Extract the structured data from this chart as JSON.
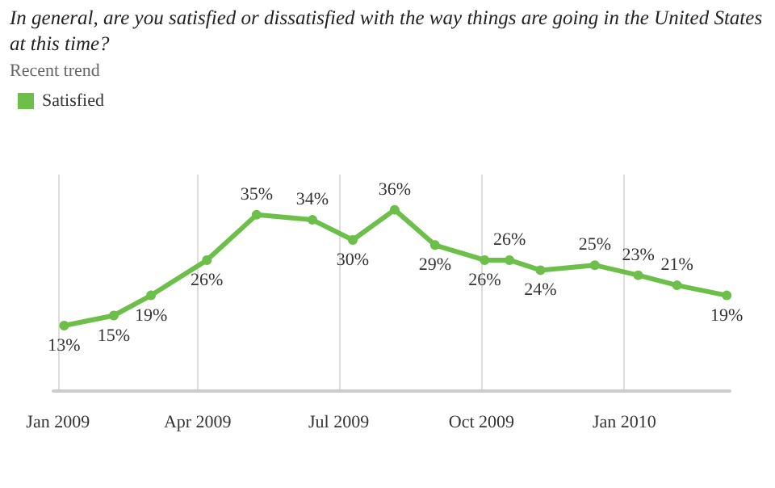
{
  "chart_data": {
    "type": "line",
    "title": "In general, are you satisfied or dissatisfied with the way things are going in the United States at this time?",
    "subtitle": "Recent trend",
    "x": [
      "2009-01-05",
      "2009-02-06",
      "2009-03-02",
      "2009-04-07",
      "2009-05-09",
      "2009-06-14",
      "2009-07-10",
      "2009-08-06",
      "2009-09-01",
      "2009-10-03",
      "2009-10-19",
      "2009-11-08",
      "2009-12-13",
      "2010-01-10",
      "2010-02-04",
      "2010-03-08"
    ],
    "series": [
      {
        "name": "Satisfied",
        "color": "#6cc04a",
        "values": [
          13,
          15,
          19,
          26,
          35,
          34,
          30,
          36,
          29,
          26,
          26,
          24,
          25,
          23,
          21,
          19
        ],
        "value_labels": [
          "13%",
          "15%",
          "19%",
          "26%",
          "35%",
          "34%",
          "30%",
          "36%",
          "29%",
          "26%",
          "26%",
          "24%",
          "25%",
          "23%",
          "21%",
          "19%"
        ]
      }
    ],
    "xlim": [
      "2008-12-29",
      "2010-03-10"
    ],
    "xticks": [
      {
        "value": "2009-01-01",
        "label": "Jan 2009"
      },
      {
        "value": "2009-04-01",
        "label": "Apr 2009"
      },
      {
        "value": "2009-07-01",
        "label": "Jul 2009"
      },
      {
        "value": "2009-10-01",
        "label": "Oct 2009"
      },
      {
        "value": "2010-01-01",
        "label": "Jan 2010"
      }
    ],
    "ylim": [
      0,
      43
    ],
    "tick_labels": "x",
    "grid": "x",
    "legend": "top left",
    "marker": "circle",
    "line_style": "solid"
  }
}
